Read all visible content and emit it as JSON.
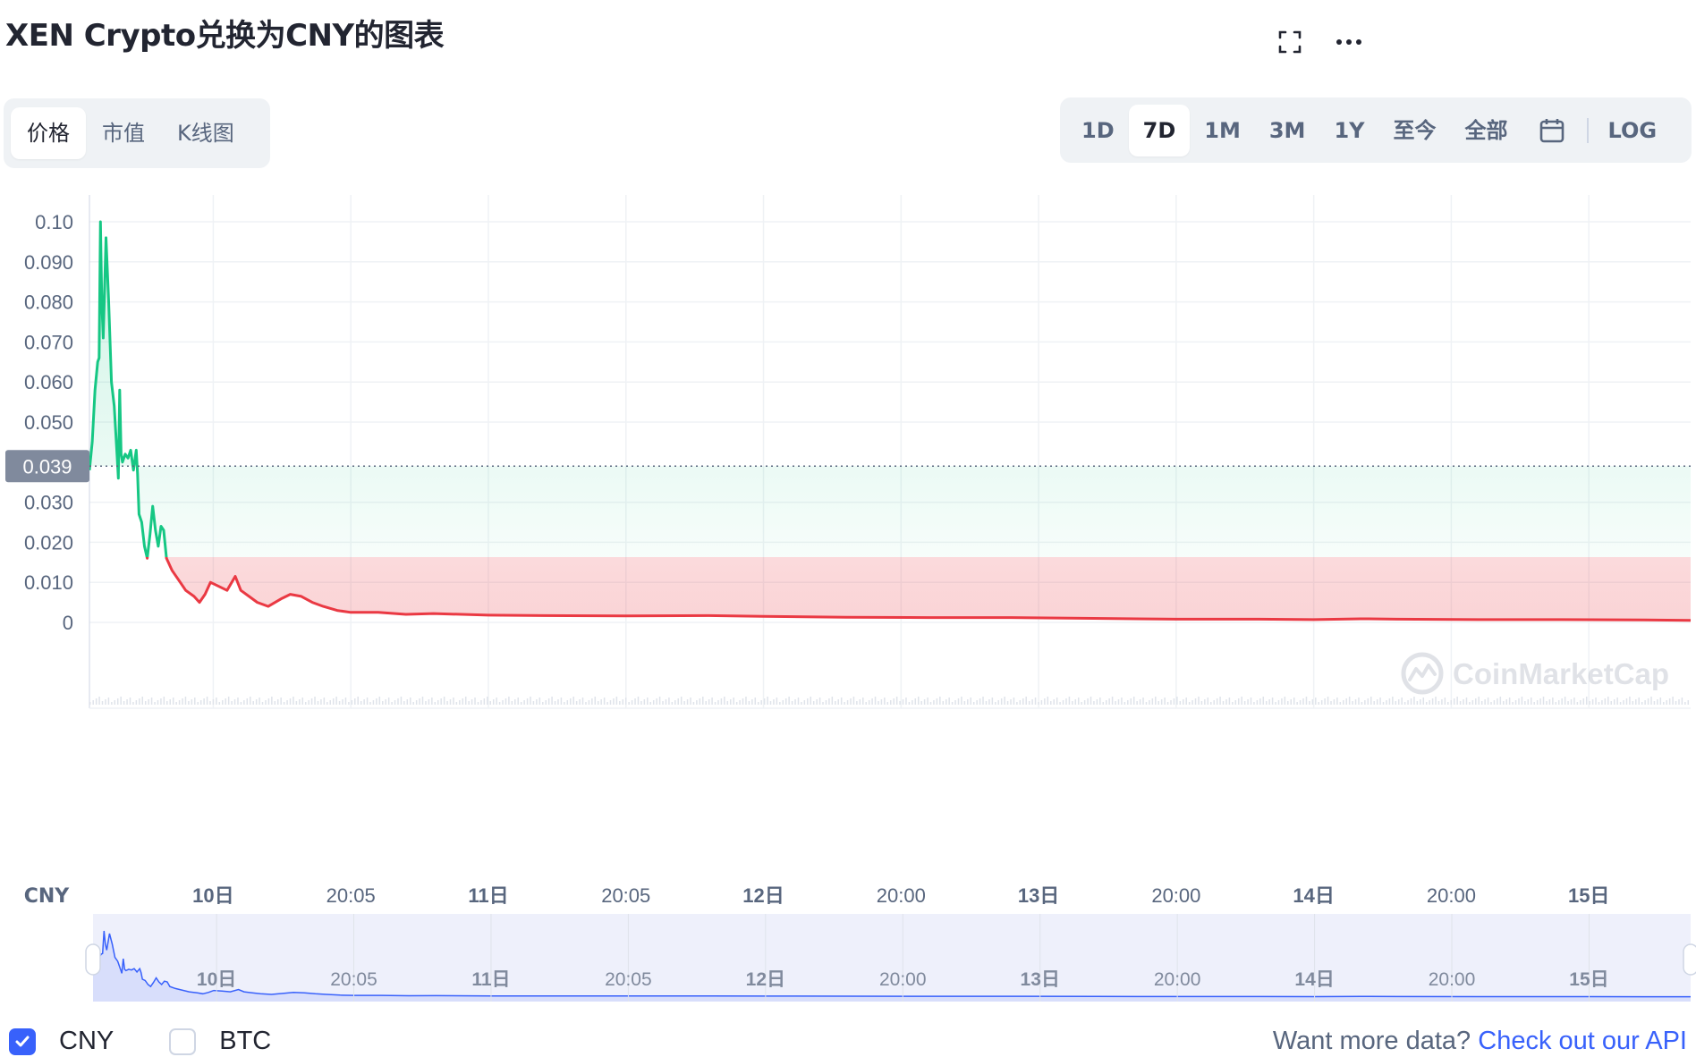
{
  "title": "XEN Crypto兑换为CNY的图表",
  "icons": {
    "fullscreen": "fullscreen-icon",
    "more": "more-icon",
    "calendar": "calendar-icon",
    "checkmark": "checkmark-icon",
    "watermark": "coinmarketcap-logo"
  },
  "metric_tabs": [
    {
      "label": "价格",
      "active": true
    },
    {
      "label": "市值",
      "active": false
    },
    {
      "label": "K线图",
      "active": false
    }
  ],
  "range_tabs": [
    {
      "label": "1D",
      "active": false
    },
    {
      "label": "7D",
      "active": true
    },
    {
      "label": "1M",
      "active": false
    },
    {
      "label": "3M",
      "active": false
    },
    {
      "label": "1Y",
      "active": false
    },
    {
      "label": "至今",
      "active": false
    },
    {
      "label": "全部",
      "active": false
    }
  ],
  "log_label": "LOG",
  "currency_label": "CNY",
  "watermark_text": "CoinMarketCap",
  "legend": [
    {
      "label": "CNY",
      "checked": true
    },
    {
      "label": "BTC",
      "checked": false
    }
  ],
  "api_text": "Want more data?",
  "api_link": "Check out our API",
  "colors": {
    "up": "#16c784",
    "down": "#ea3943",
    "nav_line": "#3861fb",
    "accent": "#3861fb"
  },
  "chart_data": {
    "type": "line",
    "yticks": [
      "0.10",
      "0.090",
      "0.080",
      "0.070",
      "0.060",
      "0.050",
      "0.030",
      "0.020",
      "0.010",
      "0"
    ],
    "ylim": [
      0,
      0.1
    ],
    "current_price": 0.039,
    "current_price_label": "0.039",
    "xlim": [
      9.55,
      15.37
    ],
    "xticks": [
      {
        "x": 10.0,
        "label": "10日",
        "bold": true
      },
      {
        "x": 10.5,
        "label": "20:05",
        "bold": false
      },
      {
        "x": 11.0,
        "label": "11日",
        "bold": true
      },
      {
        "x": 11.5,
        "label": "20:05",
        "bold": false
      },
      {
        "x": 12.0,
        "label": "12日",
        "bold": true
      },
      {
        "x": 12.5,
        "label": "20:00",
        "bold": false
      },
      {
        "x": 13.0,
        "label": "13日",
        "bold": true
      },
      {
        "x": 13.5,
        "label": "20:00",
        "bold": false
      },
      {
        "x": 14.0,
        "label": "14日",
        "bold": true
      },
      {
        "x": 14.5,
        "label": "20:00",
        "bold": false
      },
      {
        "x": 15.0,
        "label": "15日",
        "bold": true
      }
    ],
    "series": [
      {
        "values": [
          [
            9.55,
            0.038
          ],
          [
            9.56,
            0.045
          ],
          [
            9.57,
            0.058
          ],
          [
            9.58,
            0.065
          ],
          [
            9.585,
            0.066
          ],
          [
            9.59,
            0.1
          ],
          [
            9.595,
            0.08
          ],
          [
            9.6,
            0.071
          ],
          [
            9.61,
            0.096
          ],
          [
            9.62,
            0.08
          ],
          [
            9.63,
            0.06
          ],
          [
            9.64,
            0.054
          ],
          [
            9.65,
            0.042
          ],
          [
            9.655,
            0.036
          ],
          [
            9.66,
            0.058
          ],
          [
            9.665,
            0.042
          ],
          [
            9.67,
            0.04
          ],
          [
            9.68,
            0.042
          ],
          [
            9.69,
            0.041
          ],
          [
            9.7,
            0.043
          ],
          [
            9.71,
            0.038
          ],
          [
            9.72,
            0.043
          ],
          [
            9.725,
            0.037
          ],
          [
            9.73,
            0.027
          ],
          [
            9.74,
            0.025
          ],
          [
            9.75,
            0.019
          ],
          [
            9.76,
            0.016
          ],
          [
            9.77,
            0.022
          ],
          [
            9.78,
            0.029
          ],
          [
            9.79,
            0.023
          ],
          [
            9.8,
            0.019
          ],
          [
            9.81,
            0.024
          ],
          [
            9.82,
            0.023
          ],
          [
            9.83,
            0.016
          ],
          [
            9.85,
            0.013
          ],
          [
            9.88,
            0.01
          ],
          [
            9.9,
            0.008
          ],
          [
            9.93,
            0.0065
          ],
          [
            9.95,
            0.005
          ],
          [
            9.97,
            0.007
          ],
          [
            9.99,
            0.01
          ],
          [
            10.02,
            0.009
          ],
          [
            10.05,
            0.008
          ],
          [
            10.08,
            0.0115
          ],
          [
            10.1,
            0.008
          ],
          [
            10.13,
            0.0065
          ],
          [
            10.16,
            0.005
          ],
          [
            10.2,
            0.004
          ],
          [
            10.25,
            0.006
          ],
          [
            10.28,
            0.007
          ],
          [
            10.32,
            0.0065
          ],
          [
            10.36,
            0.005
          ],
          [
            10.4,
            0.004
          ],
          [
            10.45,
            0.003
          ],
          [
            10.5,
            0.0025
          ],
          [
            10.6,
            0.0025
          ],
          [
            10.7,
            0.002
          ],
          [
            10.8,
            0.0022
          ],
          [
            11.0,
            0.0018
          ],
          [
            11.2,
            0.0017
          ],
          [
            11.5,
            0.0016
          ],
          [
            11.8,
            0.0017
          ],
          [
            12.0,
            0.0015
          ],
          [
            12.3,
            0.0013
          ],
          [
            12.6,
            0.0012
          ],
          [
            12.9,
            0.0012
          ],
          [
            13.2,
            0.001
          ],
          [
            13.5,
            0.0008
          ],
          [
            13.8,
            0.0008
          ],
          [
            14.0,
            0.0007
          ],
          [
            14.17,
            0.0009
          ],
          [
            14.2,
            0.0009
          ],
          [
            14.3,
            0.0008
          ],
          [
            14.6,
            0.0007
          ],
          [
            14.9,
            0.0007
          ],
          [
            15.2,
            0.0006
          ],
          [
            15.37,
            0.0005
          ]
        ]
      }
    ],
    "grid": true,
    "legend_position": "bottom-left"
  }
}
